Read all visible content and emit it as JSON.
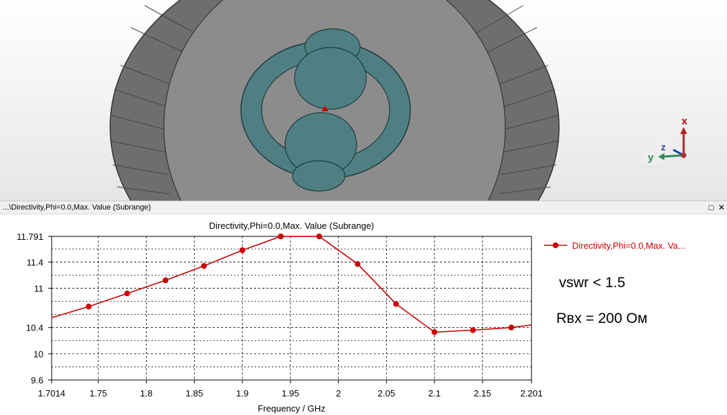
{
  "viewport": {
    "axis_labels": {
      "x": "x",
      "y": "y",
      "z": "z"
    }
  },
  "window": {
    "title": "...\\Directivity,Phi=0.0,Max. Value (Subrange)",
    "maximize_icon": "maximize-icon",
    "close_icon": "close-icon"
  },
  "annotations": {
    "vswr": "vswr < 1.5",
    "rin": "Rвх = 200 Ом"
  },
  "chart_data": {
    "type": "line",
    "title": "Directivity,Phi=0.0,Max. Value (Subrange)",
    "xlabel": "Frequency / GHz",
    "ylabel": "",
    "xlim": [
      1.7014,
      2.201
    ],
    "ylim": [
      9.6,
      11.791
    ],
    "x_ticks": [
      "1.7014",
      "1.75",
      "1.8",
      "1.85",
      "1.9",
      "1.95",
      "2",
      "2.05",
      "2.1",
      "2.15",
      "2.201"
    ],
    "y_ticks": [
      "9.6",
      "10",
      "10.4",
      "11",
      "11.4",
      "11.791"
    ],
    "grid": true,
    "legend_position": "right",
    "series": [
      {
        "name": "Directivity,Phi=0.0,Max. Va...",
        "color": "#cc0000",
        "x": [
          1.7014,
          1.74,
          1.78,
          1.82,
          1.86,
          1.9,
          1.94,
          1.98,
          2.02,
          2.06,
          2.1,
          2.14,
          2.18,
          2.201
        ],
        "y": [
          10.55,
          10.72,
          10.92,
          11.12,
          11.34,
          11.58,
          11.79,
          11.79,
          11.37,
          10.76,
          10.33,
          10.36,
          10.4,
          10.44
        ],
        "markers": [
          false,
          true,
          true,
          true,
          true,
          true,
          true,
          true,
          true,
          true,
          true,
          true,
          true,
          false
        ]
      }
    ]
  }
}
